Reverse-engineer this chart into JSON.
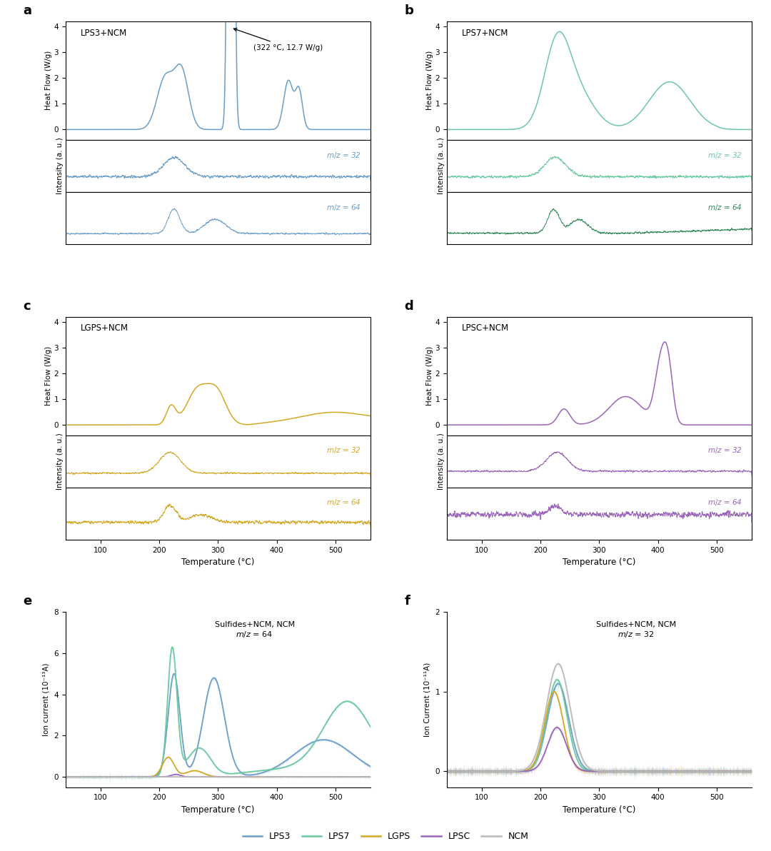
{
  "colors": {
    "LPS3": "#6B9EC8",
    "LPS7": "#6DC9A0",
    "LPS7_dark": "#2E8B57",
    "LGPS": "#D4A827",
    "LPSC": "#9966BB",
    "NCM": "#BBBBBB"
  },
  "panel_labels": [
    "a",
    "b",
    "c",
    "d",
    "e",
    "f"
  ],
  "subplot_titles": {
    "a": "LPS3+NCM",
    "b": "LPS7+NCM",
    "c": "LGPS+NCM",
    "d": "LPSC+NCM"
  },
  "dsc_ylabel": "Heat Flow (W/g)",
  "ms_ylabel": "Intensity (a. u.)",
  "xlabel": "Temperature (°C)",
  "e_ylabel": "Ion current (10⁻¹³A)",
  "f_ylabel": "Ion Current (10⁻¹¹A)",
  "e_title": "Sulfides+NCM, NCM\n$m/z$ = 64",
  "f_title": "Sulfides+NCM, NCM\n$m/z$ = 32",
  "annotation": "(322 °C, 12.7 W/g)",
  "legend_labels": [
    "LPS3",
    "LPS7",
    "LGPS",
    "LPSC",
    "NCM"
  ]
}
